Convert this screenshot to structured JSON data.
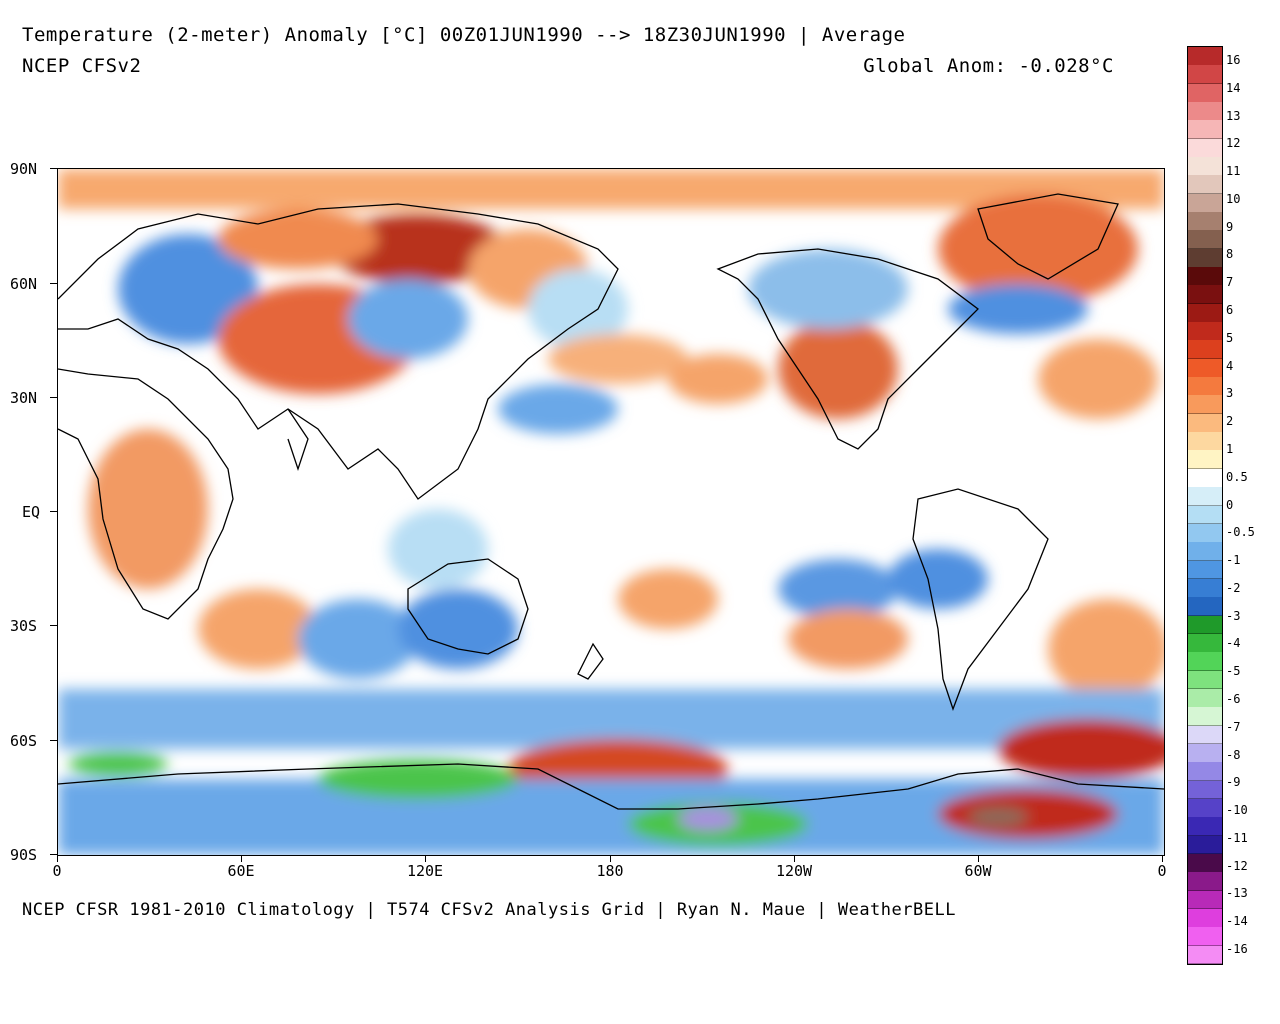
{
  "header": {
    "title": "Temperature (2-meter) Anomaly  [°C] 00Z01JUN1990 --> 18Z30JUN1990 | Average",
    "model": "NCEP CFSv2",
    "global_anomaly": "Global Anom: -0.028°C"
  },
  "footer": {
    "credit": "NCEP CFSR 1981-2010 Climatology | T574 CFSv2 Analysis Grid | Ryan N. Maue | WeatherBELL"
  },
  "map": {
    "lat_labels": [
      "90N",
      "60N",
      "30N",
      "EQ",
      "30S",
      "60S",
      "90S"
    ],
    "lon_labels": [
      "0",
      "60E",
      "120E",
      "180",
      "120W",
      "60W",
      "0"
    ],
    "colors": {
      "warm_dark": "#8b1a12",
      "warm_red": "#d8502c",
      "warm_orange": "#f29a64",
      "warm_light": "#fbd0a4",
      "neutral": "#ffffff",
      "cool_light": "#b8def4",
      "cool_blue": "#6aa8e8",
      "cool_dark": "#3b78d8",
      "green": "#4cc44c",
      "purple": "#a890e0",
      "land_line": "#000000"
    }
  },
  "colorbar": {
    "labels": [
      "16",
      "14",
      "13",
      "12",
      "11",
      "10",
      "9",
      "8",
      "7",
      "6",
      "5",
      "4",
      "3",
      "2",
      "1",
      "0.5",
      "0",
      "-0.5",
      "-1",
      "-2",
      "-3",
      "-4",
      "-5",
      "-6",
      "-7",
      "-8",
      "-9",
      "-10",
      "-11",
      "-12",
      "-13",
      "-14",
      "-16"
    ],
    "colors": [
      "#b72a2a",
      "#d14646",
      "#e06464",
      "#ec8a8a",
      "#f6b6b6",
      "#fbdada",
      "#f4e2d8",
      "#e2c7bb",
      "#c9a597",
      "#a6806f",
      "#84604f",
      "#5e3d31",
      "#5a0a0a",
      "#7a1010",
      "#9c1a14",
      "#c02a1c",
      "#dc401e",
      "#ee5a28",
      "#f47a3e",
      "#f89a5c",
      "#fbba7e",
      "#fdd8a0",
      "#fff4c4",
      "#ffffff",
      "#d6eef8",
      "#b4def4",
      "#92c8f0",
      "#70b0ea",
      "#4f96e2",
      "#377ed4",
      "#2466c0",
      "#1f9a2a",
      "#36b83c",
      "#52d458",
      "#7ee27e",
      "#aaeca8",
      "#d6f6d4",
      "#dcd8f8",
      "#b8b0f0",
      "#9488e6",
      "#7462d8",
      "#5642c8",
      "#3a28b4",
      "#2a1c9a",
      "#4a0a4a",
      "#8a1a8a",
      "#b82ab8",
      "#de3ede",
      "#f060f0",
      "#f48cf4"
    ]
  }
}
